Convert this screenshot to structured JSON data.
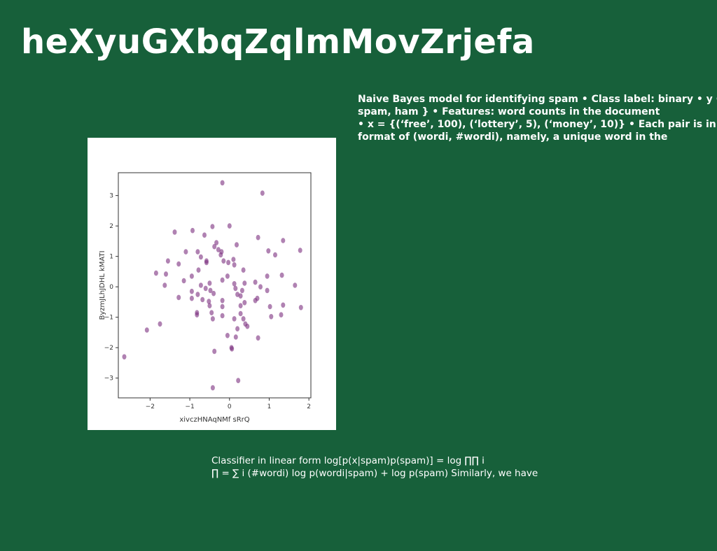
{
  "slide": {
    "title": "heXyuGXbqZqlmMovZrjefa",
    "body_lines": [
      "Naive Bayes model for identifying spam • Class label: binary • y ∈ {",
      "spam, ham } • Features: word counts in the document",
      "• x = {(‘free’, 100), (‘lottery’, 5), (‘money’, 10)} • Each pair is in",
      "format of (wordi, #wordi), namely, a unique word in the"
    ],
    "formula_lines": [
      "Classifier in linear form log[p(x|spam)p(spam)] = log ∏∏ i",
      "∏ = ∑ i (#wordi) log p(wordi|spam) + log p(spam) Similarly, we have"
    ]
  },
  "chart_data": {
    "type": "scatter",
    "xlabel": "xivczHNAqNMf sRrQ",
    "ylabel": "ByzmJLhJDHL kMATI",
    "xlim": [
      -2.8,
      2.05
    ],
    "ylim": [
      -3.65,
      3.75
    ],
    "xticks": [
      -2,
      -1,
      0,
      1,
      2
    ],
    "yticks": [
      3,
      2,
      1,
      0,
      -1,
      -2,
      -3
    ],
    "marker_color": "#7b2f7e",
    "marker_alpha": 0.6,
    "grid": false,
    "points": [
      {
        "x": -0.18,
        "y": 3.42
      },
      {
        "x": 0.83,
        "y": 3.08
      },
      {
        "x": -1.38,
        "y": 1.8
      },
      {
        "x": -0.93,
        "y": 1.85
      },
      {
        "x": -0.43,
        "y": 1.98
      },
      {
        "x": 0.0,
        "y": 2.0
      },
      {
        "x": 0.72,
        "y": 1.62
      },
      {
        "x": 1.35,
        "y": 1.52
      },
      {
        "x": 1.78,
        "y": 1.2
      },
      {
        "x": -0.63,
        "y": 1.7
      },
      {
        "x": -0.33,
        "y": 1.45
      },
      {
        "x": -0.38,
        "y": 1.32
      },
      {
        "x": -0.28,
        "y": 1.22
      },
      {
        "x": -0.2,
        "y": 1.15
      },
      {
        "x": -0.22,
        "y": 1.05
      },
      {
        "x": 0.18,
        "y": 1.38
      },
      {
        "x": 0.98,
        "y": 1.18
      },
      {
        "x": 1.15,
        "y": 1.05
      },
      {
        "x": -1.1,
        "y": 1.15
      },
      {
        "x": -0.8,
        "y": 1.15
      },
      {
        "x": -0.72,
        "y": 0.98
      },
      {
        "x": -0.58,
        "y": 0.85
      },
      {
        "x": -0.15,
        "y": 0.85
      },
      {
        "x": -0.03,
        "y": 0.8
      },
      {
        "x": 0.1,
        "y": 0.9
      },
      {
        "x": 0.12,
        "y": 0.72
      },
      {
        "x": -1.55,
        "y": 0.85
      },
      {
        "x": -1.28,
        "y": 0.75
      },
      {
        "x": -0.58,
        "y": 0.8
      },
      {
        "x": -0.78,
        "y": 0.55
      },
      {
        "x": 0.35,
        "y": 0.55
      },
      {
        "x": -1.85,
        "y": 0.45
      },
      {
        "x": -1.6,
        "y": 0.42
      },
      {
        "x": -0.95,
        "y": 0.35
      },
      {
        "x": -0.5,
        "y": 0.12
      },
      {
        "x": -0.72,
        "y": 0.05
      },
      {
        "x": -0.18,
        "y": 0.22
      },
      {
        "x": -0.05,
        "y": 0.35
      },
      {
        "x": 0.95,
        "y": 0.35
      },
      {
        "x": 1.32,
        "y": 0.38
      },
      {
        "x": -1.63,
        "y": 0.05
      },
      {
        "x": -1.15,
        "y": 0.2
      },
      {
        "x": -0.6,
        "y": -0.05
      },
      {
        "x": -0.48,
        "y": -0.12
      },
      {
        "x": -0.4,
        "y": -0.22
      },
      {
        "x": 0.12,
        "y": 0.1
      },
      {
        "x": 0.15,
        "y": -0.05
      },
      {
        "x": 0.38,
        "y": 0.12
      },
      {
        "x": 0.65,
        "y": 0.15
      },
      {
        "x": 0.78,
        "y": 0.0
      },
      {
        "x": 0.95,
        "y": -0.12
      },
      {
        "x": 1.65,
        "y": 0.05
      },
      {
        "x": -0.95,
        "y": -0.15
      },
      {
        "x": -1.28,
        "y": -0.35
      },
      {
        "x": -0.95,
        "y": -0.38
      },
      {
        "x": -0.8,
        "y": -0.25
      },
      {
        "x": -0.68,
        "y": -0.42
      },
      {
        "x": -0.52,
        "y": -0.48
      },
      {
        "x": -0.5,
        "y": -0.62
      },
      {
        "x": -0.18,
        "y": -0.45
      },
      {
        "x": -0.18,
        "y": -0.65
      },
      {
        "x": 0.2,
        "y": -0.25
      },
      {
        "x": 0.28,
        "y": -0.3
      },
      {
        "x": 0.32,
        "y": -0.12
      },
      {
        "x": 0.7,
        "y": -0.38
      },
      {
        "x": 0.65,
        "y": -0.45
      },
      {
        "x": 0.38,
        "y": -0.52
      },
      {
        "x": 0.28,
        "y": -0.62
      },
      {
        "x": 1.02,
        "y": -0.65
      },
      {
        "x": 1.35,
        "y": -0.6
      },
      {
        "x": 1.8,
        "y": -0.68
      },
      {
        "x": -0.82,
        "y": -0.85
      },
      {
        "x": -0.45,
        "y": -0.85
      },
      {
        "x": -0.42,
        "y": -1.05
      },
      {
        "x": -0.18,
        "y": -0.95
      },
      {
        "x": -0.82,
        "y": -0.92
      },
      {
        "x": 0.12,
        "y": -1.05
      },
      {
        "x": 0.28,
        "y": -0.88
      },
      {
        "x": 0.35,
        "y": -1.05
      },
      {
        "x": 0.4,
        "y": -1.22
      },
      {
        "x": 0.45,
        "y": -1.3
      },
      {
        "x": 0.2,
        "y": -1.38
      },
      {
        "x": 1.05,
        "y": -0.98
      },
      {
        "x": 1.3,
        "y": -0.92
      },
      {
        "x": -2.08,
        "y": -1.42
      },
      {
        "x": -1.75,
        "y": -1.22
      },
      {
        "x": -0.05,
        "y": -1.6
      },
      {
        "x": 0.16,
        "y": -1.65
      },
      {
        "x": 0.72,
        "y": -1.68
      },
      {
        "x": 0.05,
        "y": -2.0
      },
      {
        "x": 0.06,
        "y": -2.04
      },
      {
        "x": -0.38,
        "y": -2.12
      },
      {
        "x": -2.65,
        "y": -2.3
      },
      {
        "x": 0.22,
        "y": -3.08
      },
      {
        "x": -0.42,
        "y": -3.32
      }
    ]
  }
}
